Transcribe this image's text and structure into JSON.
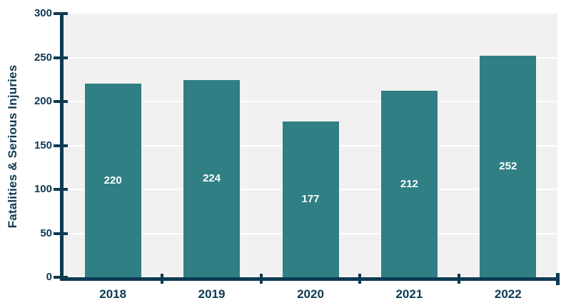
{
  "chart_data": {
    "type": "bar",
    "categories": [
      "2018",
      "2019",
      "2020",
      "2021",
      "2022"
    ],
    "values": [
      220,
      224,
      177,
      212,
      252
    ],
    "title": "",
    "xlabel": "",
    "ylabel": "Fatalities & Serious Injuries",
    "ylim": [
      0,
      300
    ],
    "yticks": [
      0,
      50,
      100,
      150,
      200,
      250,
      300
    ],
    "grid": true,
    "legend": false,
    "bar_labels": [
      "220",
      "224",
      "177",
      "212",
      "252"
    ],
    "colors": {
      "bar": "#2f7f84",
      "axis": "#0d3a52",
      "plot_background": "#f1f1f1",
      "gridline": "#ffffff",
      "bar_label_text": "#ffffff",
      "figure_background": "#ffffff"
    }
  }
}
